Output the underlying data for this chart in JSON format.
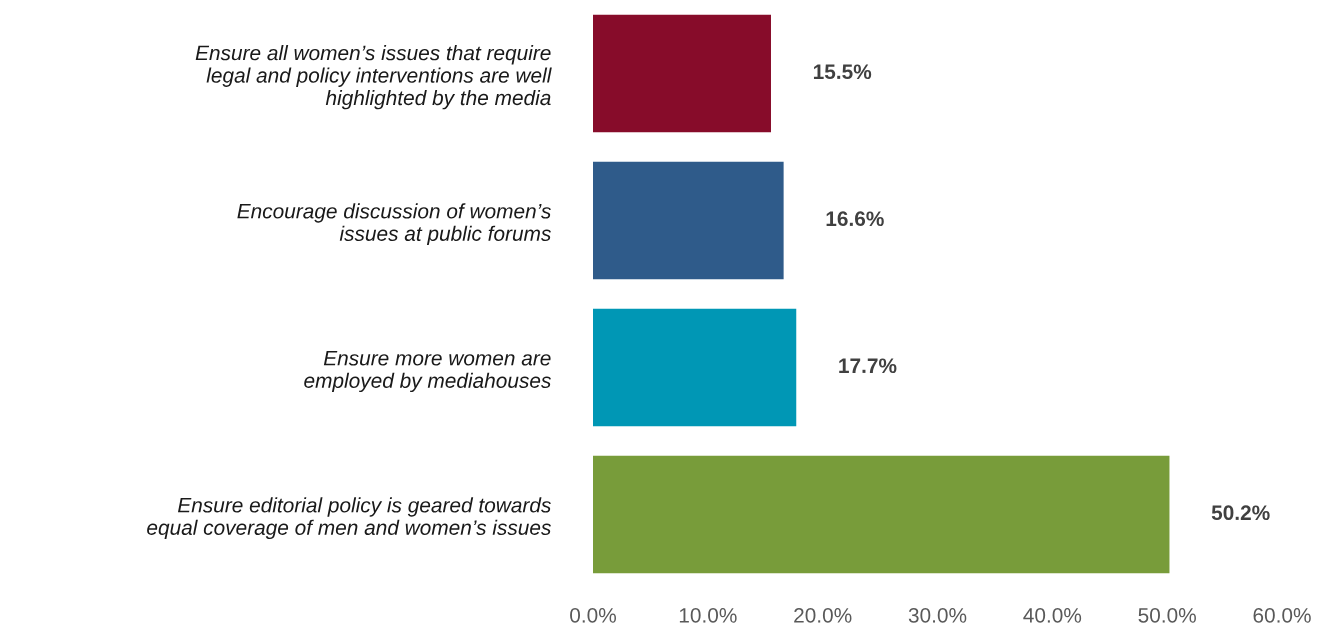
{
  "chart_data": {
    "type": "bar",
    "orientation": "horizontal",
    "categories": [
      "Ensure all women’s issues that require\nlegal and policy interventions are well\nhighlighted by the media",
      "Encourage discussion of women’s\nissues at public forums",
      "Ensure more women are\nemployed by mediahouses",
      "Ensure editorial policy is geared towards\nequal coverage of men and women’s issues"
    ],
    "values": [
      15.5,
      16.6,
      17.7,
      50.2
    ],
    "colors": [
      "#870c2a",
      "#2f5b8a",
      "#0097b5",
      "#789c3a"
    ],
    "value_labels": [
      "15.5%",
      "16.6%",
      "17.7%",
      "50.2%"
    ],
    "xlim": [
      0,
      60
    ],
    "xticks": [
      {
        "value": 0,
        "label": "0.0%"
      },
      {
        "value": 10,
        "label": "10.0%"
      },
      {
        "value": 20,
        "label": "20.0%"
      },
      {
        "value": 30,
        "label": "30.0%"
      },
      {
        "value": 40,
        "label": "40.0%"
      },
      {
        "value": 50,
        "label": "50.0%"
      },
      {
        "value": 60,
        "label": "60.0%"
      }
    ],
    "grid": false
  }
}
